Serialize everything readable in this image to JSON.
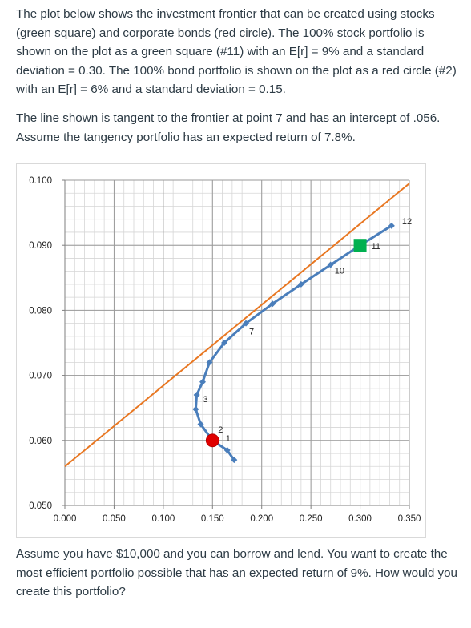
{
  "question": {
    "intro": "The plot below shows the investment frontier that can be created using stocks (green square) and corporate bonds (red circle). The 100% stock portfolio is shown on the plot as a green square (#11) with an E[r] = 9% and a standard deviation = 0.30. The 100% bond portfolio is shown on the plot as a red circle (#2) with an E[r] = 6% and a standard deviation = 0.15.",
    "tangent": "The line shown is tangent to the frontier at point 7 and has an intercept of .056. Assume the tangency portfolio has an expected return of 7.8%.",
    "ask": "Assume you have $10,000 and you can borrow and lend. You want to create the most efficient portfolio possible that has an expected return of 9%. How would you create this portfolio?"
  },
  "chart_data": {
    "type": "line",
    "title": "",
    "xlabel": "",
    "ylabel": "",
    "xlim": [
      0.0,
      0.35
    ],
    "ylim": [
      0.05,
      0.1
    ],
    "x_ticks": [
      "0.000",
      "0.050",
      "0.100",
      "0.150",
      "0.200",
      "0.250",
      "0.300",
      "0.350"
    ],
    "y_ticks": [
      "0.050",
      "0.060",
      "0.070",
      "0.080",
      "0.090",
      "0.100"
    ],
    "grid": true,
    "frontier": {
      "color": "#4a7ebb",
      "points": [
        {
          "x": 0.172,
          "y": 0.057
        },
        {
          "x": 0.165,
          "y": 0.0585,
          "label": "1"
        },
        {
          "x": 0.15,
          "y": 0.06,
          "label": "2"
        },
        {
          "x": 0.138,
          "y": 0.0625
        },
        {
          "x": 0.133,
          "y": 0.0648,
          "label": "3"
        },
        {
          "x": 0.134,
          "y": 0.067
        },
        {
          "x": 0.14,
          "y": 0.069
        },
        {
          "x": 0.147,
          "y": 0.072
        },
        {
          "x": 0.162,
          "y": 0.075
        },
        {
          "x": 0.184,
          "y": 0.078,
          "label": "7"
        },
        {
          "x": 0.211,
          "y": 0.081
        },
        {
          "x": 0.24,
          "y": 0.084
        },
        {
          "x": 0.27,
          "y": 0.087,
          "label": "10"
        },
        {
          "x": 0.3,
          "y": 0.09,
          "label": "11"
        },
        {
          "x": 0.332,
          "y": 0.093,
          "label": "12"
        }
      ]
    },
    "tangent_line": {
      "color": "#e87722",
      "points": [
        {
          "x": 0.0,
          "y": 0.056
        },
        {
          "x": 0.35,
          "y": 0.0995
        }
      ]
    },
    "markers": [
      {
        "label": "11",
        "shape": "square",
        "color": "#00b050",
        "x": 0.3,
        "y": 0.09
      },
      {
        "label": "2",
        "shape": "circle",
        "color": "#e00000",
        "x": 0.15,
        "y": 0.06
      }
    ]
  }
}
